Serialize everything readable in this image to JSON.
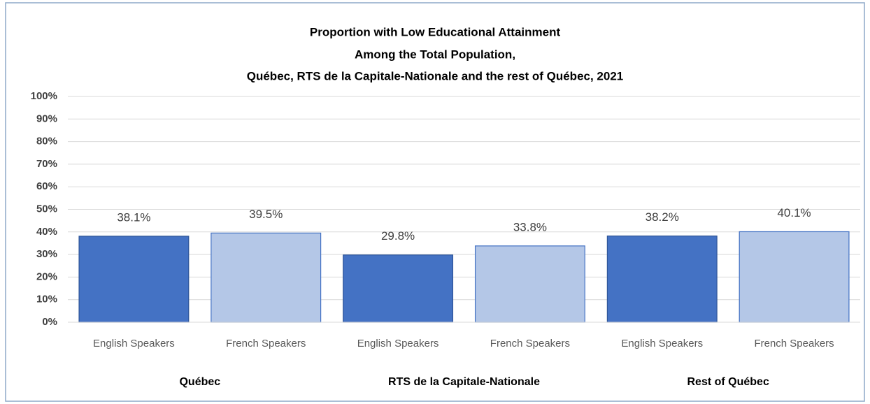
{
  "chart_data": {
    "type": "bar",
    "title": [
      "Proportion with Low Educational  Attainment",
      "Among the Total Population,",
      "Québec, RTS de la Capitale-Nationale  and the rest of Québec, 2021"
    ],
    "categories": [
      "English Speakers",
      "French Speakers",
      "English Speakers",
      "French Speakers",
      "English Speakers",
      "French Speakers"
    ],
    "groups": [
      "Québec",
      "RTS de la Capitale-Nationale",
      "Rest of Québec"
    ],
    "values": [
      38.1,
      39.5,
      29.8,
      33.8,
      38.2,
      40.1
    ],
    "value_labels": [
      "38.1%",
      "39.5%",
      "29.8%",
      "33.8%",
      "38.2%",
      "40.1%"
    ],
    "colors": [
      "#4472c4",
      "#b4c7e7",
      "#4472c4",
      "#b4c7e7",
      "#4472c4",
      "#b4c7e7"
    ],
    "ylim": [
      0,
      100
    ],
    "yticks": [
      {
        "value": 0,
        "label": "0%"
      },
      {
        "value": 10,
        "label": "10%"
      },
      {
        "value": 20,
        "label": "20%"
      },
      {
        "value": 30,
        "label": "30%"
      },
      {
        "value": 40,
        "label": "40%"
      },
      {
        "value": 50,
        "label": "50%"
      },
      {
        "value": 60,
        "label": "60%"
      },
      {
        "value": 70,
        "label": "70%"
      },
      {
        "value": 80,
        "label": "80%"
      },
      {
        "value": 90,
        "label": "90%"
      },
      {
        "value": 100,
        "label": "100%"
      }
    ],
    "grid": true
  }
}
